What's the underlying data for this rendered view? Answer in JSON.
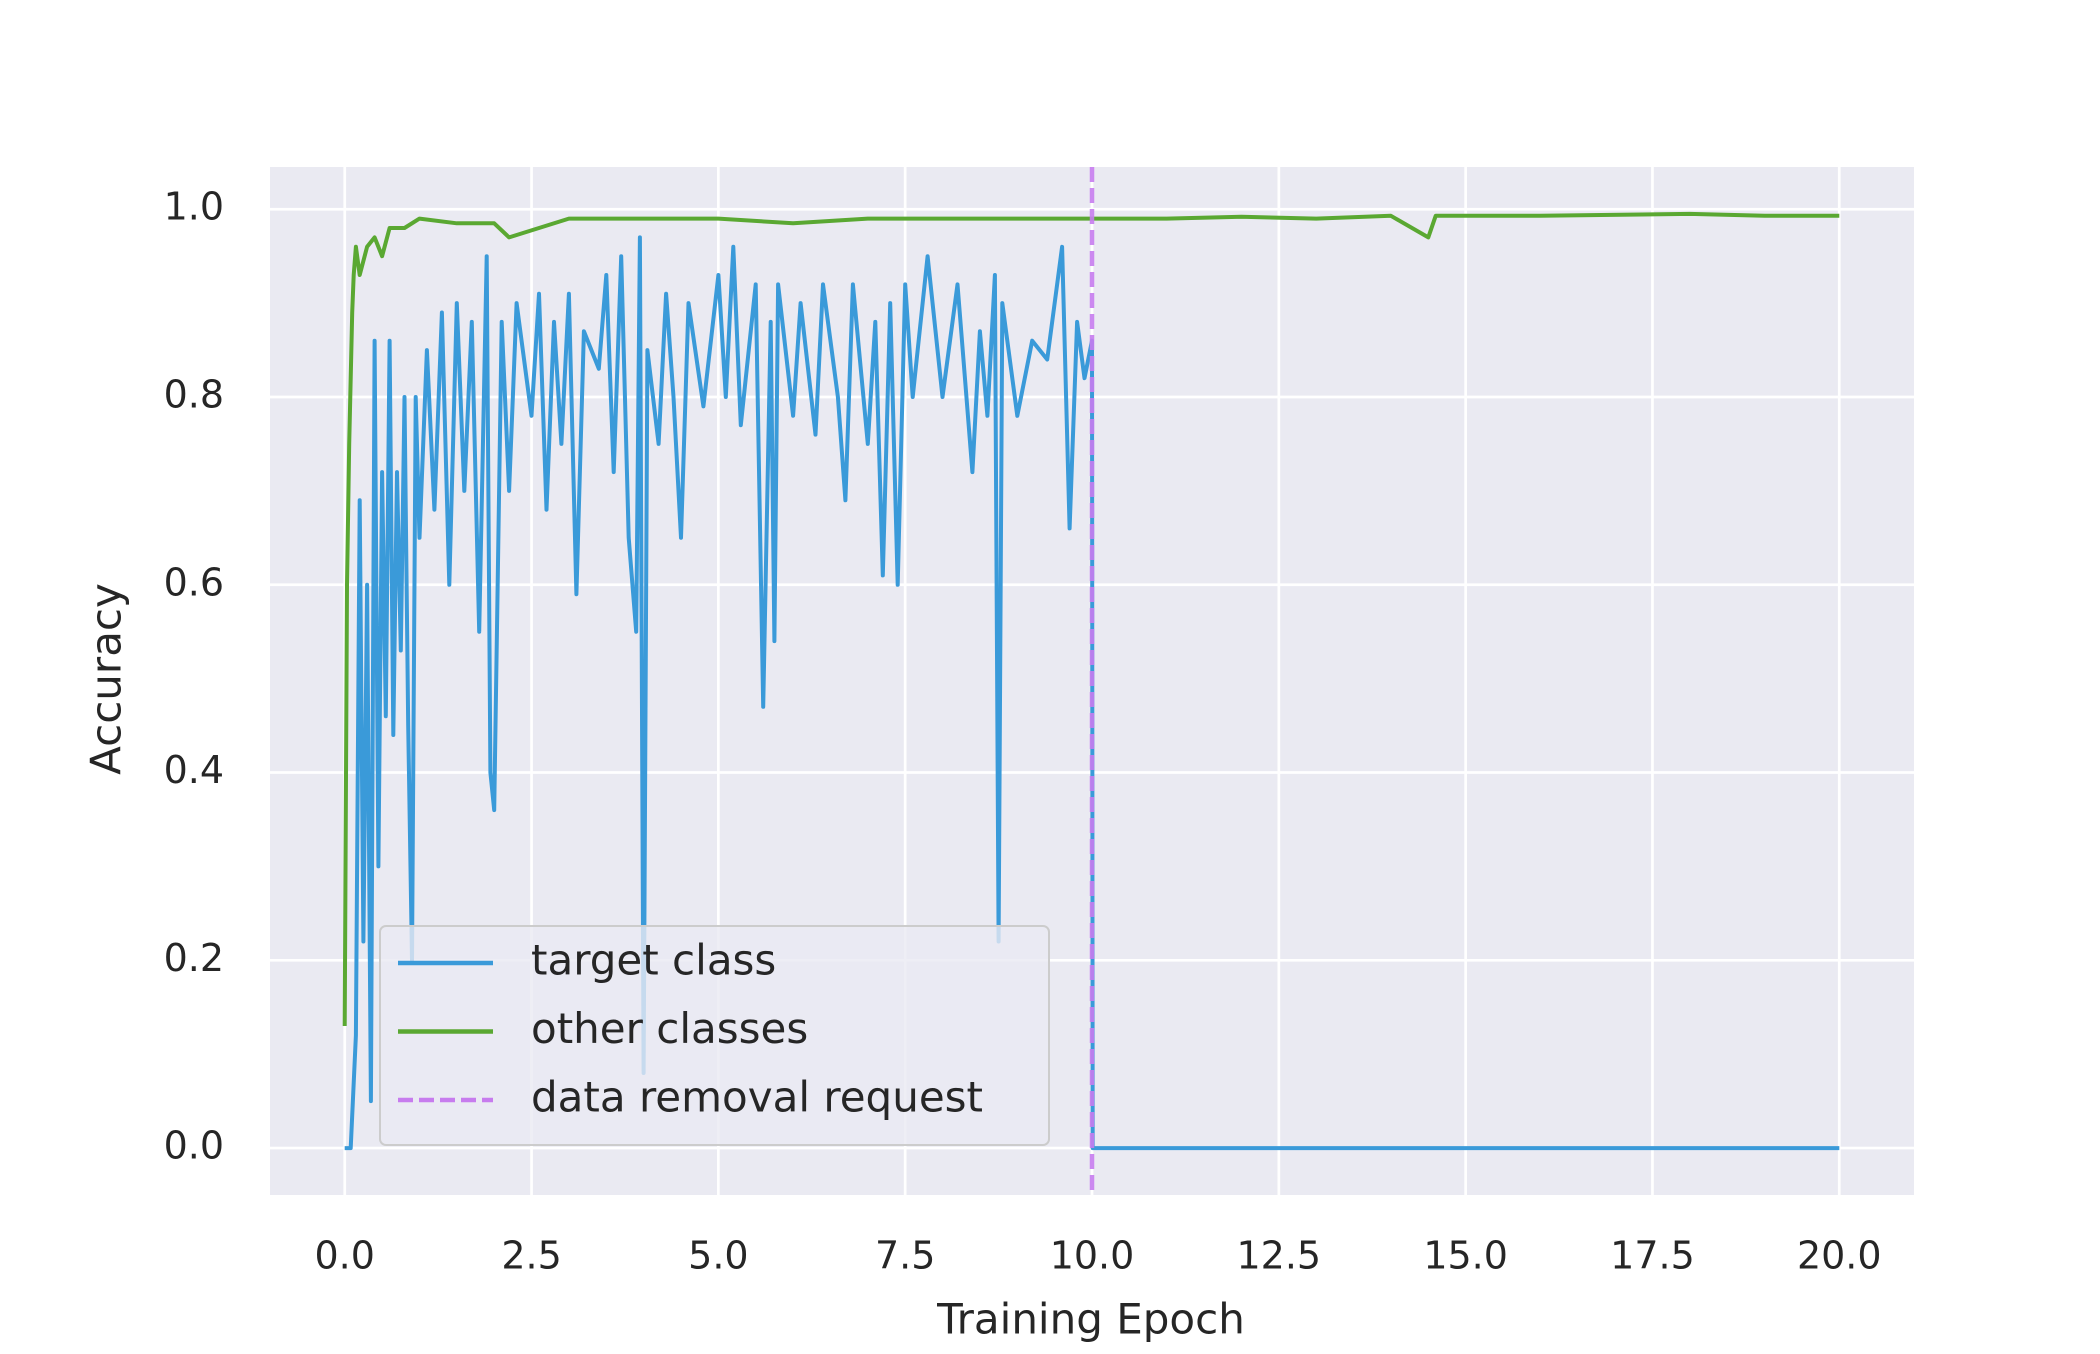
{
  "chart_data": {
    "type": "line",
    "xlabel": "Training Epoch",
    "ylabel": "Accuracy",
    "xlim": [
      -1,
      21
    ],
    "ylim": [
      -0.05,
      1.045
    ],
    "xticks": [
      {
        "value": 0,
        "label": "0.0"
      },
      2.5,
      {
        "value": 5,
        "label": "5.0"
      },
      7.5,
      {
        "value": 10,
        "label": "10.0"
      },
      12.5,
      {
        "value": 15,
        "label": "15.0"
      },
      17.5,
      {
        "value": 20,
        "label": "20.0"
      }
    ],
    "yticks": [
      {
        "value": 0,
        "label": "0.0"
      },
      0.2,
      0.4,
      0.6,
      0.8,
      {
        "value": 1,
        "label": "1.0"
      }
    ],
    "grid": true,
    "legend": "lower left",
    "series": [
      {
        "name": "target class",
        "color": "#3a9ad9",
        "x": [
          0,
          0.08,
          0.15,
          0.2,
          0.25,
          0.3,
          0.35,
          0.4,
          0.45,
          0.5,
          0.55,
          0.6,
          0.65,
          0.7,
          0.75,
          0.8,
          0.85,
          0.9,
          0.95,
          1.0,
          1.1,
          1.2,
          1.3,
          1.4,
          1.5,
          1.6,
          1.7,
          1.8,
          1.9,
          1.95,
          2.0,
          2.1,
          2.2,
          2.3,
          2.5,
          2.6,
          2.7,
          2.8,
          2.9,
          3.0,
          3.1,
          3.2,
          3.4,
          3.5,
          3.6,
          3.7,
          3.8,
          3.9,
          3.95,
          4.0,
          4.05,
          4.2,
          4.3,
          4.4,
          4.5,
          4.6,
          4.8,
          5.0,
          5.1,
          5.2,
          5.3,
          5.5,
          5.6,
          5.7,
          5.75,
          5.8,
          6.0,
          6.1,
          6.3,
          6.4,
          6.6,
          6.7,
          6.8,
          7.0,
          7.1,
          7.2,
          7.3,
          7.4,
          7.5,
          7.6,
          7.8,
          8.0,
          8.2,
          8.4,
          8.5,
          8.6,
          8.7,
          8.75,
          8.8,
          9.0,
          9.2,
          9.4,
          9.6,
          9.7,
          9.8,
          9.9,
          10.0,
          10.01,
          20
        ],
        "values": [
          0,
          0,
          0.12,
          0.69,
          0.22,
          0.6,
          0.05,
          0.86,
          0.3,
          0.72,
          0.46,
          0.86,
          0.44,
          0.72,
          0.53,
          0.8,
          0.45,
          0.2,
          0.8,
          0.65,
          0.85,
          0.68,
          0.89,
          0.6,
          0.9,
          0.7,
          0.88,
          0.55,
          0.95,
          0.4,
          0.36,
          0.88,
          0.7,
          0.9,
          0.78,
          0.91,
          0.68,
          0.88,
          0.75,
          0.91,
          0.59,
          0.87,
          0.83,
          0.93,
          0.72,
          0.95,
          0.65,
          0.55,
          0.97,
          0.08,
          0.85,
          0.75,
          0.91,
          0.8,
          0.65,
          0.9,
          0.79,
          0.93,
          0.8,
          0.96,
          0.77,
          0.92,
          0.47,
          0.88,
          0.54,
          0.92,
          0.78,
          0.9,
          0.76,
          0.92,
          0.8,
          0.69,
          0.92,
          0.75,
          0.88,
          0.61,
          0.9,
          0.6,
          0.92,
          0.8,
          0.95,
          0.8,
          0.92,
          0.72,
          0.87,
          0.78,
          0.93,
          0.22,
          0.9,
          0.78,
          0.86,
          0.84,
          0.96,
          0.66,
          0.88,
          0.82,
          0.86,
          0,
          0
        ]
      },
      {
        "name": "other classes",
        "color": "#5aa832",
        "x": [
          0,
          0.03,
          0.06,
          0.1,
          0.12,
          0.15,
          0.2,
          0.3,
          0.4,
          0.5,
          0.6,
          0.8,
          1.0,
          1.5,
          2.0,
          2.2,
          3,
          4,
          5,
          6,
          7,
          8,
          9,
          10,
          11,
          12,
          13,
          14,
          14.5,
          14.6,
          16,
          18,
          19,
          20
        ],
        "values": [
          0.13,
          0.6,
          0.75,
          0.89,
          0.93,
          0.96,
          0.93,
          0.96,
          0.97,
          0.95,
          0.98,
          0.98,
          0.99,
          0.985,
          0.985,
          0.97,
          0.99,
          0.99,
          0.99,
          0.985,
          0.99,
          0.99,
          0.99,
          0.99,
          0.99,
          0.992,
          0.99,
          0.993,
          0.97,
          0.993,
          0.993,
          0.995,
          0.993,
          0.993
        ]
      }
    ],
    "vlines": [
      {
        "name": "data removal request",
        "x": 10,
        "color": "#c77cee"
      }
    ]
  }
}
